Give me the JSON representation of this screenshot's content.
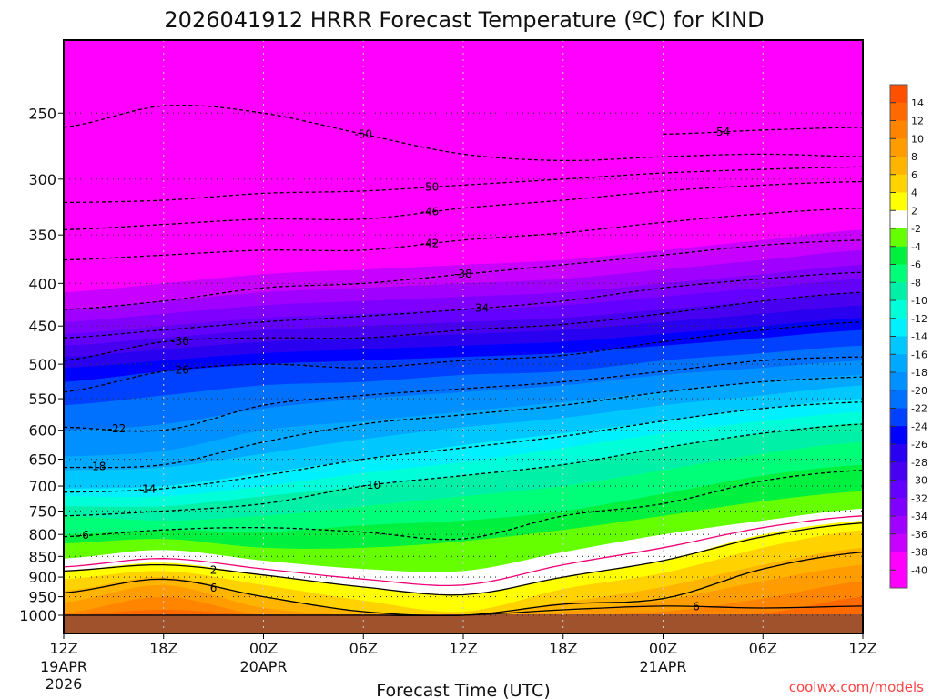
{
  "chart_data": {
    "type": "heatmap",
    "title": "2026041912 HRRR Forecast Temperature (ºC) for KIND",
    "xlabel": "Forecast Time (UTC)",
    "ylabel": "",
    "watermark": "coolwx.com/models",
    "x_hours": [
      0,
      6,
      12,
      18,
      24,
      30,
      36,
      42,
      48
    ],
    "x_ticks": [
      {
        "hour": 0,
        "label": "12Z",
        "sub": [
          "19APR",
          "2026"
        ]
      },
      {
        "hour": 6,
        "label": "18Z",
        "sub": []
      },
      {
        "hour": 12,
        "label": "00Z",
        "sub": [
          "20APR"
        ]
      },
      {
        "hour": 18,
        "label": "06Z",
        "sub": []
      },
      {
        "hour": 24,
        "label": "12Z",
        "sub": []
      },
      {
        "hour": 30,
        "label": "18Z",
        "sub": []
      },
      {
        "hour": 36,
        "label": "00Z",
        "sub": [
          "21APR"
        ]
      },
      {
        "hour": 42,
        "label": "06Z",
        "sub": []
      },
      {
        "hour": 48,
        "label": "12Z",
        "sub": []
      }
    ],
    "y_ticks": [
      250,
      300,
      350,
      400,
      450,
      500,
      550,
      600,
      650,
      700,
      750,
      800,
      850,
      900,
      950,
      1000
    ],
    "ylim_hpa": [
      1000,
      204
    ],
    "ground_color": "#a0522d",
    "colorbar": {
      "labels": [
        "14",
        "12",
        "10",
        "8",
        "6",
        "4",
        "2",
        "-2",
        "-4",
        "-6",
        "-8",
        "-10",
        "-12",
        "-14",
        "-16",
        "-18",
        "-20",
        "-22",
        "-24",
        "-26",
        "-28",
        "-30",
        "-32",
        "-34",
        "-36",
        "-38",
        "-40"
      ],
      "colors": [
        "#ff5000",
        "#ff6a00",
        "#ff8400",
        "#ff9c00",
        "#ffb400",
        "#ffd200",
        "#ffff00",
        "#ffffff",
        "#66ff00",
        "#00f040",
        "#00ff78",
        "#00f0a8",
        "#00ffd8",
        "#00f0ff",
        "#00c8ff",
        "#00a8ff",
        "#0090ff",
        "#0070ff",
        "#0040ff",
        "#0000ff",
        "#2a00f0",
        "#4800f0",
        "#6400ff",
        "#8000ff",
        "#a000ff",
        "#c800ff",
        "#ff00ff",
        "#ff00ff"
      ]
    },
    "filled_isotherms": [
      {
        "t": -38,
        "color": "#c800ff",
        "p": [
          410,
          400,
          390,
          385,
          380,
          375,
          365,
          355,
          345
        ]
      },
      {
        "t": -36,
        "color": "#a000ff",
        "p": [
          430,
          420,
          410,
          405,
          400,
          395,
          385,
          375,
          365
        ]
      },
      {
        "t": -34,
        "color": "#8000ff",
        "p": [
          445,
          435,
          425,
          420,
          415,
          410,
          400,
          390,
          380
        ]
      },
      {
        "t": -32,
        "color": "#6400ff",
        "p": [
          460,
          450,
          440,
          435,
          430,
          425,
          415,
          405,
          395
        ]
      },
      {
        "t": -30,
        "color": "#4800f0",
        "p": [
          475,
          465,
          455,
          450,
          445,
          440,
          430,
          420,
          410
        ]
      },
      {
        "t": -28,
        "color": "#2a00f0",
        "p": [
          490,
          480,
          470,
          465,
          460,
          455,
          445,
          435,
          425
        ]
      },
      {
        "t": -26,
        "color": "#0000ff",
        "p": [
          505,
          495,
          485,
          480,
          475,
          470,
          460,
          450,
          440
        ]
      },
      {
        "t": -24,
        "color": "#0040ff",
        "p": [
          525,
          510,
          500,
          495,
          490,
          485,
          475,
          465,
          455
        ]
      },
      {
        "t": -22,
        "color": "#0070ff",
        "p": [
          560,
          545,
          530,
          525,
          515,
          510,
          495,
          485,
          475
        ]
      },
      {
        "t": -20,
        "color": "#0090ff",
        "p": [
          600,
          590,
          565,
          550,
          540,
          530,
          515,
          505,
          495
        ]
      },
      {
        "t": -18,
        "color": "#00a8ff",
        "p": [
          645,
          635,
          600,
          585,
          570,
          555,
          540,
          525,
          515
        ]
      },
      {
        "t": -16,
        "color": "#00c8ff",
        "p": [
          670,
          665,
          640,
          615,
          595,
          580,
          560,
          545,
          530
        ]
      },
      {
        "t": -14,
        "color": "#00f0ff",
        "p": [
          705,
          700,
          675,
          650,
          625,
          605,
          585,
          565,
          550
        ]
      },
      {
        "t": -12,
        "color": "#00ffd8",
        "p": [
          720,
          720,
          700,
          675,
          655,
          630,
          605,
          585,
          570
        ]
      },
      {
        "t": -10,
        "color": "#00f0a8",
        "p": [
          740,
          740,
          720,
          700,
          680,
          660,
          630,
          605,
          588
        ]
      },
      {
        "t": -8,
        "color": "#00ff78",
        "p": [
          760,
          770,
          760,
          740,
          720,
          700,
          670,
          640,
          620
        ]
      },
      {
        "t": -6,
        "color": "#00f040",
        "p": [
          800,
          790,
          795,
          780,
          770,
          750,
          715,
          680,
          660
        ]
      },
      {
        "t": -4,
        "color": "#66ff00",
        "p": [
          820,
          810,
          830,
          830,
          815,
          790,
          760,
          730,
          710
        ]
      },
      {
        "t": -2,
        "color": "#ffffff",
        "p": [
          855,
          835,
          860,
          880,
          885,
          840,
          800,
          770,
          745
        ]
      },
      {
        "t": 2,
        "color": "#ffff00",
        "p": [
          885,
          865,
          895,
          925,
          945,
          900,
          860,
          800,
          770
        ]
      },
      {
        "t": 4,
        "color": "#ffd200",
        "p": [
          905,
          885,
          920,
          960,
          990,
          930,
          890,
          830,
          790
        ]
      },
      {
        "t": 6,
        "color": "#ffb400",
        "p": [
          935,
          900,
          950,
          990,
          1000,
          965,
          925,
          870,
          830
        ]
      },
      {
        "t": 8,
        "color": "#ff9c00",
        "p": [
          965,
          920,
          980,
          1000,
          1000,
          990,
          960,
          910,
          870
        ]
      },
      {
        "t": 10,
        "color": "#ff8400",
        "p": [
          995,
          950,
          1000,
          1000,
          1000,
          1000,
          990,
          955,
          910
        ]
      },
      {
        "t": 12,
        "color": "#ff6a00",
        "p": [
          1000,
          985,
          1000,
          1000,
          1000,
          1000,
          1000,
          995,
          950
        ]
      }
    ],
    "contour_lines": [
      {
        "t": -54,
        "label": "-54",
        "style": "dashed",
        "p": [
          0,
          0,
          0,
          0,
          0,
          0,
          265,
          262,
          260
        ],
        "label_hour": 39.5
      },
      {
        "t": -50,
        "label": "-50",
        "style": "dashed",
        "p": [
          260,
          245,
          250,
          265,
          280,
          285,
          282,
          280,
          282
        ],
        "label_hour": 18
      },
      {
        "t": -50,
        "label": "-50",
        "style": "dashed",
        "p": [
          320,
          318,
          312,
          310,
          305,
          300,
          295,
          292,
          290
        ],
        "label_hour": 22
      },
      {
        "t": -46,
        "label": "-46",
        "style": "dashed",
        "p": [
          345,
          340,
          335,
          335,
          325,
          318,
          310,
          305,
          302
        ],
        "label_hour": 22
      },
      {
        "t": -42,
        "label": "-42",
        "style": "dashed",
        "p": [
          375,
          370,
          365,
          365,
          355,
          348,
          338,
          330,
          325
        ],
        "label_hour": 22
      },
      {
        "t": -38,
        "label": "-38",
        "style": "dashed",
        "p": [
          430,
          420,
          405,
          400,
          390,
          380,
          370,
          360,
          355
        ],
        "label_hour": 24
      },
      {
        "t": -34,
        "label": "-34",
        "style": "dashed",
        "p": [
          465,
          455,
          445,
          438,
          430,
          420,
          405,
          395,
          388
        ],
        "label_hour": 25
      },
      {
        "t": -30,
        "label": "-30",
        "style": "dashed",
        "p": [
          495,
          470,
          465,
          465,
          455,
          448,
          435,
          420,
          410
        ],
        "label_hour": 7
      },
      {
        "t": -26,
        "label": "-26",
        "style": "dashed",
        "p": [
          540,
          510,
          500,
          505,
          495,
          488,
          470,
          455,
          445
        ],
        "label_hour": 7
      },
      {
        "t": -22,
        "label": "-22",
        "style": "dashed",
        "p": [
          595,
          600,
          560,
          545,
          535,
          525,
          510,
          495,
          490
        ],
        "label_hour": 3.2
      },
      {
        "t": -18,
        "label": "-18",
        "style": "dashed",
        "p": [
          665,
          660,
          620,
          590,
          575,
          560,
          540,
          525,
          518
        ],
        "label_hour": 2
      },
      {
        "t": -14,
        "label": "-14",
        "style": "dashed",
        "p": [
          712,
          705,
          680,
          650,
          630,
          610,
          585,
          565,
          555
        ],
        "label_hour": 5
      },
      {
        "t": -10,
        "label": "-10",
        "style": "dashed",
        "p": [
          760,
          750,
          735,
          700,
          680,
          660,
          630,
          605,
          590
        ],
        "label_hour": 18.5
      },
      {
        "t": -6,
        "label": "-6",
        "style": "dashed",
        "p": [
          805,
          790,
          785,
          795,
          810,
          760,
          735,
          690,
          670
        ],
        "label_hour": 1.2
      },
      {
        "t": 0,
        "label": "",
        "style": "zero",
        "p": [
          875,
          855,
          880,
          905,
          920,
          870,
          830,
          785,
          760
        ],
        "label_hour": -1
      },
      {
        "t": 2,
        "label": "2",
        "style": "solid",
        "p": [
          885,
          870,
          895,
          925,
          945,
          900,
          860,
          805,
          775
        ],
        "label_hour": 9
      },
      {
        "t": 6,
        "label": "6",
        "style": "solid",
        "p": [
          940,
          905,
          950,
          990,
          1000,
          970,
          955,
          880,
          840
        ],
        "label_hour": 9
      },
      {
        "t": 6,
        "label": "6",
        "style": "solid",
        "p": [
          1000,
          1000,
          1000,
          1000,
          1000,
          985,
          975,
          980,
          975
        ],
        "label_hour": 38
      }
    ]
  }
}
